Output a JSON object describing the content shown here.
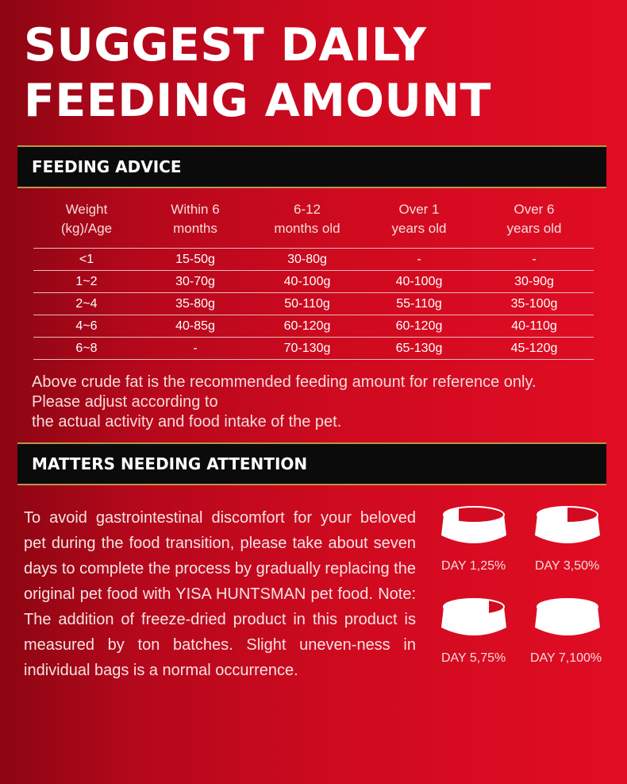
{
  "title": {
    "line1": "SUGGEST DAILY",
    "line2": "FEEDING AMOUNT"
  },
  "feeding_advice": {
    "label": "FEEDING ADVICE"
  },
  "table": {
    "headers": [
      "Weight\n(kg)/Age",
      "Within 6\nmonths",
      "6-12\nmonths old",
      "Over 1\nyears old",
      "Over 6\nyears old"
    ],
    "rows": [
      [
        "<1",
        "15-50g",
        "30-80g",
        "-",
        "-"
      ],
      [
        "1~2",
        "30-70g",
        "40-100g",
        "40-100g",
        "30-90g"
      ],
      [
        "2~4",
        "35-80g",
        "50-110g",
        "55-110g",
        "35-100g"
      ],
      [
        "4~6",
        "40-85g",
        "60-120g",
        "60-120g",
        "40-110g"
      ],
      [
        "6~8",
        "-",
        "70-130g",
        "65-130g",
        "45-120g"
      ]
    ]
  },
  "note": {
    "line1": "Above crude fat is the recommended feeding amount for reference only.",
    "line2": "Please adjust according to",
    "line3": "the actual activity and food intake of the pet."
  },
  "attention": {
    "label": "MATTERS NEEDING ATTENTION"
  },
  "paragraph": "To avoid gastrointestinal discomfort for your beloved pet during the food transition, please take about seven days to complete the process by gradually replacing the original pet food with YISA HUNTSMAN pet food. Note: The addition of freeze-dried product in this product is measured by ton batches. Slight uneven-ness in individual bags is a normal occurrence.",
  "bowls": [
    {
      "caption": "DAY 1,25%",
      "fill": 0.25
    },
    {
      "caption": "DAY 3,50%",
      "fill": 0.5
    },
    {
      "caption": "DAY 5,75%",
      "fill": 0.75
    },
    {
      "caption": "DAY 7,100%",
      "fill": 1.0
    }
  ],
  "colors": {
    "background": "#cf0a1f",
    "bar": "#0b0b0b",
    "gold_line": "#b8964a"
  }
}
